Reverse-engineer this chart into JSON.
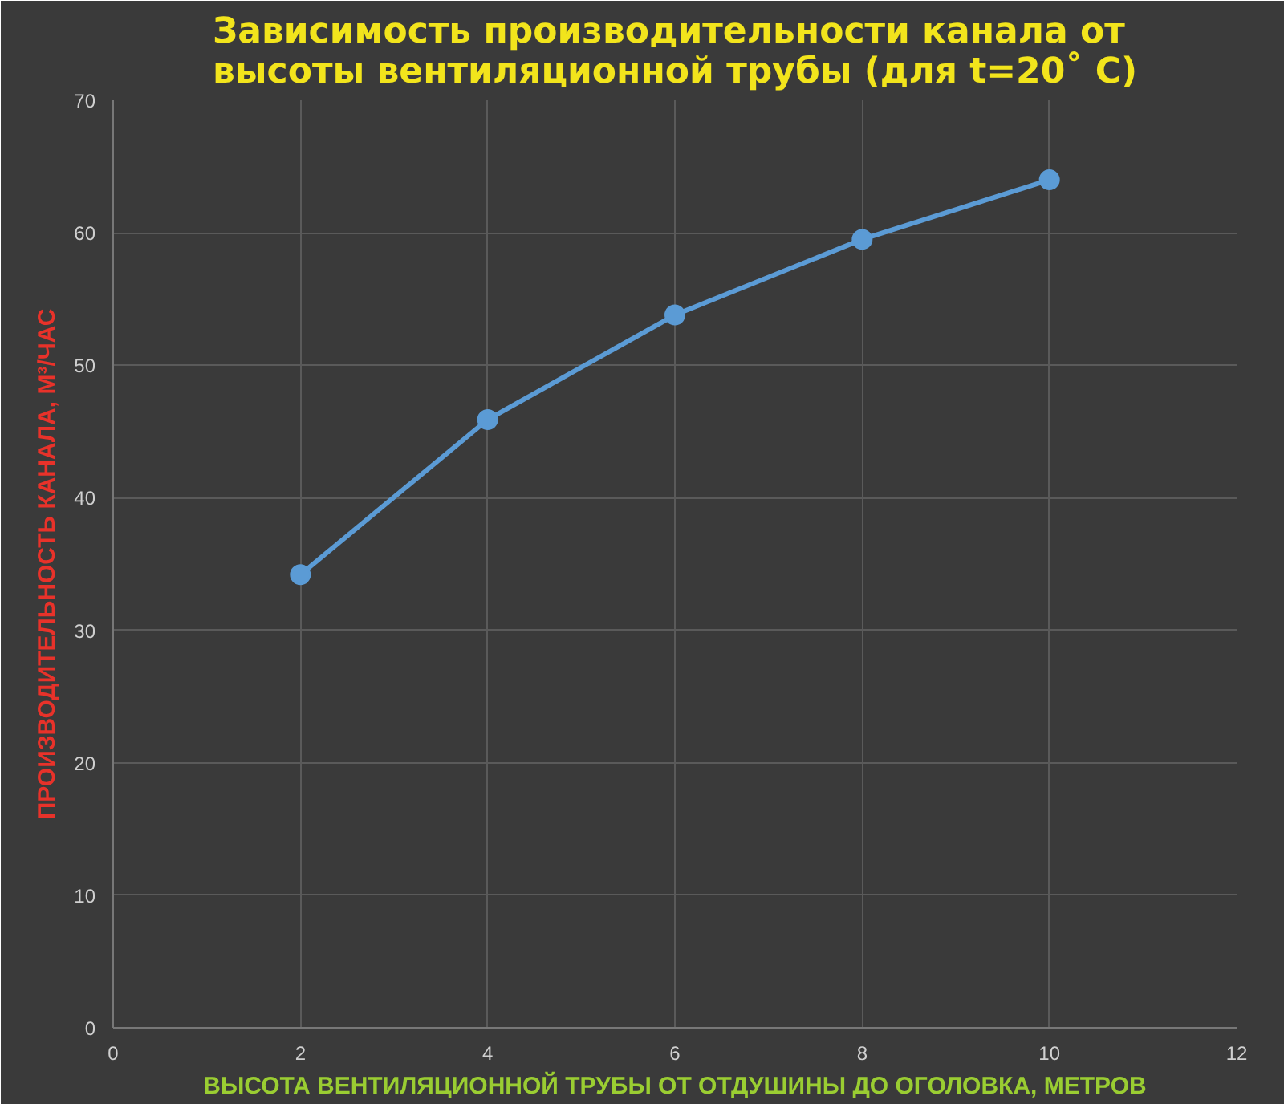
{
  "chart_data": {
    "type": "line",
    "title": "Зависимость производительности канала от\nвысоты вентиляционной трубы (для t=20˚ C)",
    "xlabel": "ВЫСОТА ВЕНТИЛЯЦИОННОЙ ТРУБЫ ОТ ОТДУШИНЫ ДО ОГОЛОВКА, МЕТРОВ",
    "ylabel": "ПРОИЗВОДИТЕЛЬНОСТЬ КАНАЛА, М³/ЧАС",
    "x": [
      2,
      4,
      6,
      8,
      10
    ],
    "series": [
      {
        "color": "#5b9bd5",
        "values": [
          34.2,
          45.9,
          53.8,
          59.5,
          64.0
        ]
      }
    ],
    "xlim": [
      0,
      12
    ],
    "xticks": [
      0,
      2,
      4,
      6,
      8,
      10,
      12
    ],
    "ylim": [
      0,
      70
    ],
    "yticks": [
      0,
      10,
      20,
      30,
      40,
      50,
      60,
      70
    ],
    "grid": true,
    "marker": "circle",
    "line_style": "solid"
  }
}
